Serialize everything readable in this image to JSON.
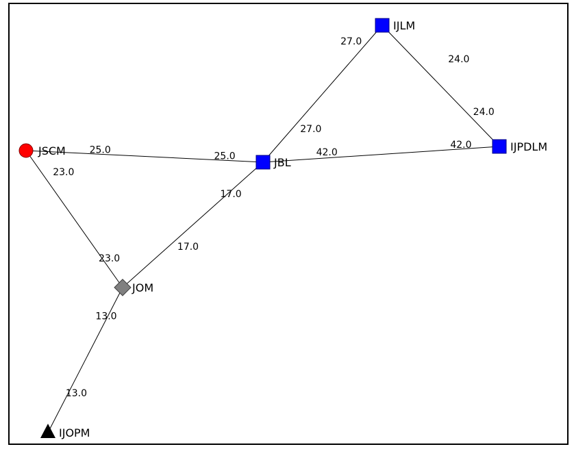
{
  "graph": {
    "nodes": [
      {
        "id": "JSCM",
        "label": "JSCM",
        "shape": "circle",
        "color": "#ff0000"
      },
      {
        "id": "JBL",
        "label": "JBL",
        "shape": "square",
        "color": "#0000ff"
      },
      {
        "id": "IJLM",
        "label": "IJLM",
        "shape": "square",
        "color": "#0000ff"
      },
      {
        "id": "IJPDLM",
        "label": "IJPDLM",
        "shape": "square",
        "color": "#0000ff"
      },
      {
        "id": "JOM",
        "label": "JOM",
        "shape": "diamond",
        "color": "#808080"
      },
      {
        "id": "IJOPM",
        "label": "IJOPM",
        "shape": "triangle",
        "color": "#000000"
      }
    ],
    "edges": [
      {
        "from": "JSCM",
        "to": "JBL",
        "weight": "25.0"
      },
      {
        "from": "JSCM",
        "to": "JOM",
        "weight": "23.0"
      },
      {
        "from": "JBL",
        "to": "IJLM",
        "weight": "27.0"
      },
      {
        "from": "JBL",
        "to": "IJPDLM",
        "weight": "42.0"
      },
      {
        "from": "JBL",
        "to": "JOM",
        "weight": "17.0"
      },
      {
        "from": "IJLM",
        "to": "IJPDLM",
        "weight": "24.0"
      },
      {
        "from": "JOM",
        "to": "IJOPM",
        "weight": "13.0"
      }
    ]
  }
}
